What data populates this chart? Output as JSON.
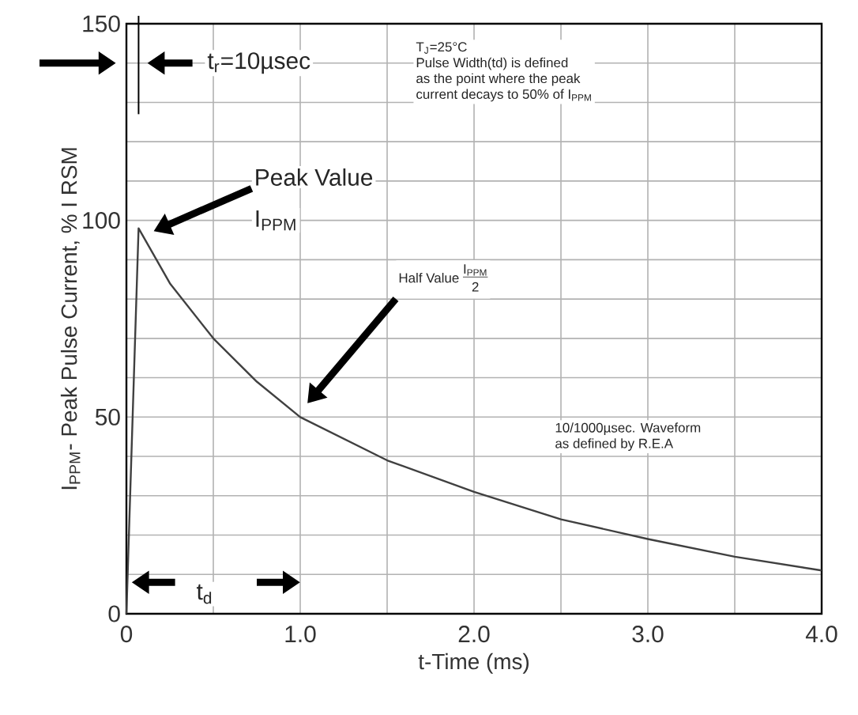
{
  "chart_data": {
    "type": "line",
    "xlabel": "t-Time (ms)",
    "ylabel": "I$_{PPM}$- Peak Pulse Current, % I RSM",
    "x": [
      0,
      0.07,
      0.25,
      0.5,
      0.75,
      1.0,
      1.5,
      2.0,
      2.5,
      3.0,
      3.5,
      4.0
    ],
    "values": [
      0,
      98,
      84,
      70,
      59,
      50,
      39,
      31,
      24,
      19,
      14.5,
      11
    ],
    "color": "#404040",
    "xlim": [
      0,
      4
    ],
    "ylim": [
      0,
      150
    ],
    "xticks": [
      0,
      {
        "value": 0.5,
        "label": null
      },
      {
        "value": 1,
        "label": "1.0"
      },
      {
        "value": 1.5,
        "label": null
      },
      {
        "value": 2,
        "label": "2.0"
      },
      {
        "value": 2.5,
        "label": null
      },
      {
        "value": 3,
        "label": "3.0"
      },
      {
        "value": 3.5,
        "label": null
      },
      {
        "value": 4,
        "label": "4.0"
      }
    ],
    "yticks": [
      0,
      {
        "value": 10,
        "label": null
      },
      {
        "value": 20,
        "label": null
      },
      {
        "value": 30,
        "label": null
      },
      {
        "value": 40,
        "label": null
      },
      50,
      {
        "value": 60,
        "label": null
      },
      {
        "value": 70,
        "label": null
      },
      {
        "value": 80,
        "label": null
      },
      {
        "value": 90,
        "label": null
      },
      100,
      {
        "value": 110,
        "label": null
      },
      {
        "value": 120,
        "label": null
      },
      {
        "value": 130,
        "label": null
      },
      {
        "value": 140,
        "label": null
      },
      150
    ],
    "grid": true,
    "marker": "none",
    "line_style": "solid",
    "annotations": [
      "t$_{r}$=10µsec",
      "Peak Value",
      "I$_{PPM}$",
      "T$_{J}$=25°C",
      "Pulse Width(td) is defined",
      "as the point where the peak",
      "current decays to 50% of I$_{PPM}$",
      "Half Value",
      "I$_{PPM}$",
      "2",
      "10/1000µsec. Waveform",
      "as defined by R.E.A",
      "t$_{d}$"
    ]
  }
}
